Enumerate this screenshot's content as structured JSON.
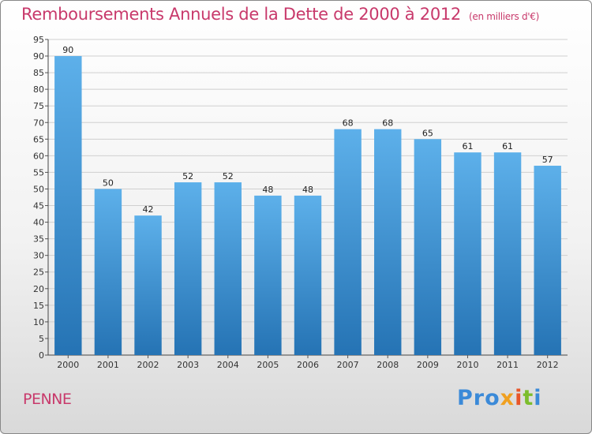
{
  "chart_data": {
    "type": "bar",
    "title": "Remboursements Annuels de la Dette de 2000 à 2012",
    "subtitle": "(en milliers d'€)",
    "categories": [
      "2000",
      "2001",
      "2002",
      "2003",
      "2004",
      "2005",
      "2006",
      "2007",
      "2008",
      "2009",
      "2010",
      "2011",
      "2012"
    ],
    "values": [
      90,
      50,
      42,
      52,
      52,
      48,
      48,
      68,
      68,
      65,
      61,
      61,
      57
    ],
    "ylim": [
      0,
      95
    ],
    "ytick_step": 5,
    "grid": true,
    "bar_color": "#3a93d8"
  },
  "footer": {
    "commune": "PENNE",
    "logo": {
      "p1": "Pro",
      "p2": "x",
      "p3": "i",
      "p4": "t",
      "p5": "i"
    }
  }
}
